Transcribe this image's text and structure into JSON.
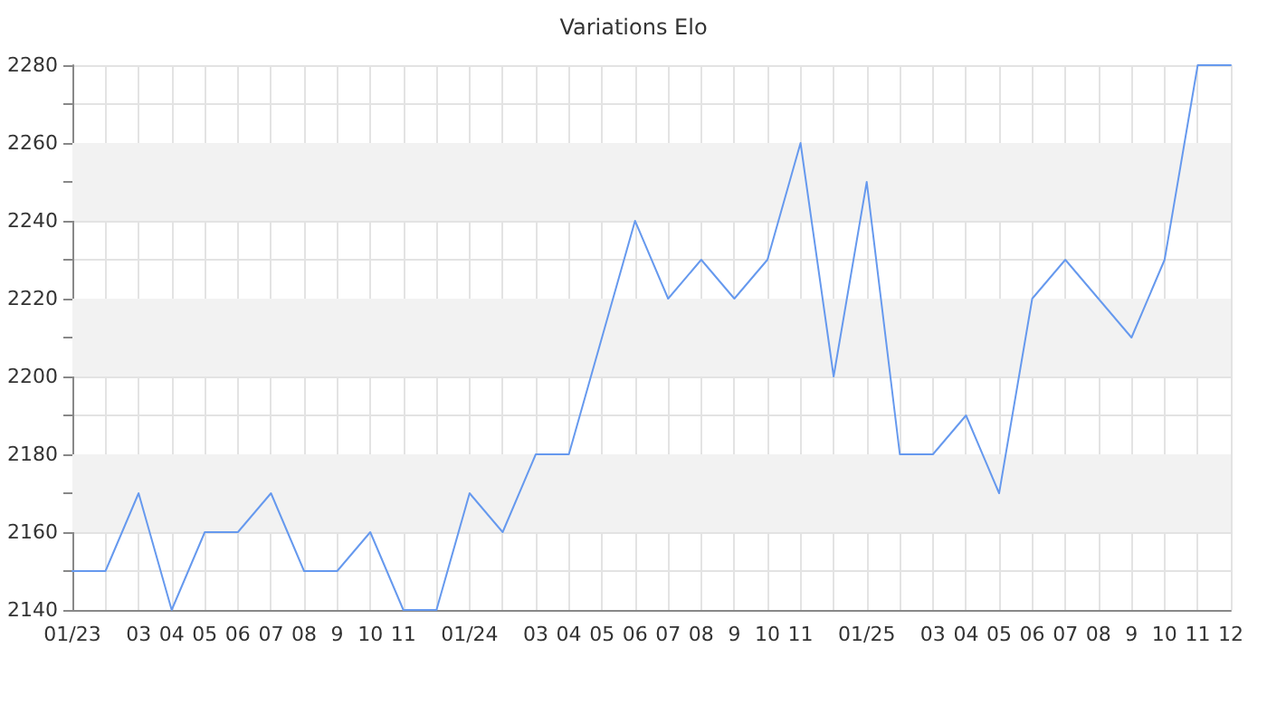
{
  "chart_data": {
    "type": "line",
    "title": "Variations Elo",
    "categories": [
      "01/23",
      null,
      "03",
      "04",
      "05",
      "06",
      "07",
      "08",
      "9",
      "10",
      "11",
      null,
      "01/24",
      null,
      "03",
      "04",
      "05",
      "06",
      "07",
      "08",
      "9",
      "10",
      "11",
      null,
      "01/25",
      null,
      "03",
      "04",
      "05",
      "06",
      "07",
      "08",
      "9",
      "10",
      "11",
      "12"
    ],
    "series": [
      {
        "color": "#6699ee",
        "values": [
          2150,
          2150,
          2170,
          2140,
          2160,
          2160,
          2170,
          2150,
          2150,
          2160,
          2140,
          2140,
          2170,
          2160,
          2180,
          2180,
          2210,
          2240,
          2220,
          2230,
          2220,
          2230,
          2260,
          2200,
          2250,
          2180,
          2180,
          2190,
          2170,
          2220,
          2230,
          2220,
          2210,
          2230,
          2280,
          2280
        ]
      }
    ],
    "ylim": [
      2140,
      2280
    ],
    "yticks": [
      2140,
      2160,
      2180,
      2200,
      2220,
      2240,
      2260,
      2280
    ],
    "bands": [
      {
        "axis": "y",
        "from": 2160,
        "to": 2180,
        "color": "#f2f2f2"
      },
      {
        "axis": "y",
        "from": 2200,
        "to": 2220,
        "color": "#f2f2f2"
      },
      {
        "axis": "y",
        "from": 2240,
        "to": 2260,
        "color": "#f2f2f2"
      }
    ],
    "grid": true,
    "marker": "none",
    "line_style": "solid"
  }
}
